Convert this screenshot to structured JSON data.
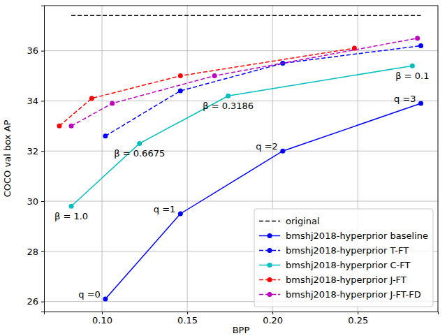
{
  "chart_data": {
    "type": "line",
    "x_label": "BPP",
    "y_label": "COCO val box AP",
    "xlim": [
      0.066,
      0.297
    ],
    "ylim": [
      25.6,
      37.8
    ],
    "xticks": [
      {
        "value": 0.1,
        "label": "0.10"
      },
      0.15,
      {
        "value": 0.2,
        "label": "0.20"
      },
      0.25
    ],
    "yticks": [
      26,
      28,
      30,
      32,
      34,
      36
    ],
    "grid": true,
    "legend": "lower right",
    "series": [
      {
        "name": "original",
        "color": "#000000",
        "line_style": "dashed",
        "marker": "none",
        "x": [
          0.082,
          0.287
        ],
        "values": [
          37.4,
          37.4
        ]
      },
      {
        "name": "bmshj2018-hyperprior baseline",
        "color": "#0000ff",
        "line_style": "solid",
        "marker": "circle",
        "x": [
          0.102,
          0.146,
          0.206,
          0.287
        ],
        "values": [
          26.1,
          29.5,
          32.0,
          33.9
        ],
        "point_labels": [
          "q =0",
          "q =1",
          "q =2",
          "q =3"
        ]
      },
      {
        "name": "bmshj2018-hyperprior T-FT",
        "color": "#0000ff",
        "line_style": "dashed",
        "marker": "circle",
        "x": [
          0.102,
          0.146,
          0.206,
          0.287
        ],
        "values": [
          32.6,
          34.4,
          35.5,
          36.2
        ]
      },
      {
        "name": "bmshj2018-hyperprior C-FT",
        "color": "#00bfbf",
        "line_style": "solid",
        "marker": "circle",
        "x": [
          0.082,
          0.122,
          0.174,
          0.282
        ],
        "values": [
          29.8,
          32.3,
          34.2,
          35.4
        ],
        "point_labels": [
          "β = 1.0",
          "β = 0.6675",
          "β = 0.3186",
          "β = 0.1"
        ]
      },
      {
        "name": "bmshj2018-hyperprior J-FT",
        "color": "#ff0000",
        "line_style": "dashed",
        "marker": "circle",
        "x": [
          0.075,
          0.094,
          0.146,
          0.248
        ],
        "values": [
          33.0,
          34.1,
          35.0,
          36.1
        ]
      },
      {
        "name": "bmshj2018-hyperprior J-FT-FD",
        "color": "#bf00bf",
        "line_style": "dashed",
        "marker": "circle",
        "x": [
          0.082,
          0.106,
          0.166,
          0.285
        ],
        "values": [
          33.0,
          33.9,
          35.0,
          36.5
        ]
      }
    ]
  }
}
